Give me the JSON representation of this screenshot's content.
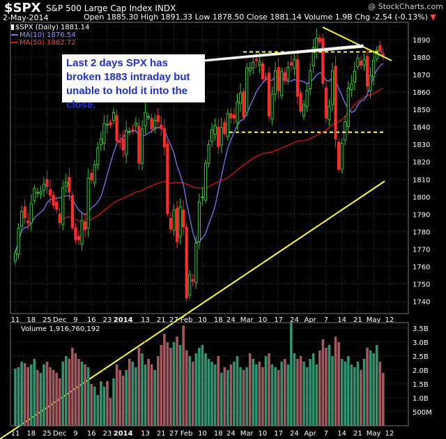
{
  "header": {
    "symbol": "$SPX",
    "name": "S&P 500 Large Cap Index",
    "exchange": "INDX",
    "date": "2-May-2014",
    "open_label": "Open",
    "open": "1885.30",
    "high_label": "High",
    "high": "1891.33",
    "low_label": "Low",
    "low": "1878.50",
    "close_label": "Close",
    "close": "1881.14",
    "volume_label": "Volume",
    "volume": "1.9B",
    "chg_label": "Chg",
    "chg": "-2.54 (-0.13%)",
    "chg_arrow": "▼",
    "watermark": "@ StockCharts.com"
  },
  "legend": {
    "price": "$SPX (Daily) 1881.14",
    "ma10": "MA(10) 1876.54",
    "ma50": "MA(50) 1862.72",
    "volume": "Volume 1,916,760,192"
  },
  "annotation": {
    "text": "Last 2 days SPX has broken 1883 intraday but unable to hold it into the close."
  },
  "colors": {
    "up": "#33cc33",
    "down": "#ff2b2b",
    "ma10": "#7777ff",
    "ma50": "#dd1111",
    "trend": "#ffff33",
    "grid": "#3a3a3a",
    "vol_up": "#2f9470",
    "vol_down": "#a05a60"
  },
  "chart_data": [
    {
      "type": "candlestick",
      "title": "$SPX (Daily) 1881.14",
      "ylim": [
        1733,
        1900
      ],
      "grid": true,
      "y_ticks": [
        1740,
        1750,
        1760,
        1770,
        1780,
        1790,
        1800,
        1810,
        1820,
        1830,
        1840,
        1850,
        1860,
        1870,
        1880,
        1890
      ],
      "x_tick_labels": [
        "11",
        "18",
        "25",
        "Dec",
        "9",
        "16",
        "23",
        "2014",
        "13",
        "21",
        "27",
        "Feb",
        "10",
        "18",
        "24",
        "Mar",
        "10",
        "17",
        "24",
        "Apr",
        "7",
        "14",
        "21",
        "May",
        "12"
      ],
      "x_tick_bar_index": [
        0,
        5,
        10,
        14,
        19,
        24,
        29,
        34,
        41,
        46,
        50,
        54,
        59,
        64,
        68,
        73,
        78,
        83,
        88,
        93,
        98,
        103,
        108,
        113,
        118
      ],
      "series_close": [
        1767.69,
        1782.0,
        1791.53,
        1787.87,
        1785.03,
        1795.85,
        1804.76,
        1802.48,
        1802.75,
        1807.23,
        1805.81,
        1800.9,
        1795.15,
        1792.81,
        1785.03,
        1805.09,
        1808.37,
        1802.62,
        1782.22,
        1775.5,
        1775.32,
        1786.54,
        1781.0,
        1810.65,
        1809.6,
        1818.32,
        1827.99,
        1833.32,
        1842.02,
        1841.4,
        1841.07,
        1848.36,
        1831.98,
        1831.37,
        1826.77,
        1837.88,
        1837.49,
        1838.13,
        1842.37,
        1819.2,
        1838.88,
        1848.38,
        1845.89,
        1838.7,
        1843.8,
        1843.08,
        1839.0,
        1828.46,
        1790.29,
        1781.56,
        1792.5,
        1774.2,
        1794.19,
        1782.59,
        1741.89,
        1755.2,
        1751.64,
        1773.43,
        1797.02,
        1799.84,
        1819.26,
        1829.83,
        1838.63,
        1840.76,
        1828.75,
        1839.78,
        1836.25,
        1847.61,
        1845.12,
        1845.16,
        1854.29,
        1859.45,
        1845.73,
        1873.91,
        1873.81,
        1877.03,
        1878.04,
        1877.17,
        1867.63,
        1868.2,
        1846.34,
        1858.83,
        1872.25,
        1860.77,
        1872.01,
        1866.52,
        1874.19,
        1875.39,
        1878.61,
        1857.62,
        1849.04,
        1852.56,
        1860.9,
        1872.34,
        1885.52,
        1890.9,
        1888.77,
        1865.09,
        1845.04,
        1851.96,
        1872.18,
        1833.08,
        1815.69,
        1830.61,
        1842.98,
        1862.31,
        1864.85,
        1871.89,
        1879.55,
        1875.39,
        1878.61,
        1863.4,
        1869.43,
        1878.33,
        1883.95,
        1883.68,
        1881.14
      ],
      "annotation_levels": [
        1883,
        1837
      ],
      "series": [
        {
          "name": "MA(10)",
          "last": 1876.54
        },
        {
          "name": "MA(50)",
          "last": 1862.72
        }
      ]
    },
    {
      "type": "bar",
      "title": "Volume 1,916,760,192",
      "ylim": [
        0,
        3.7
      ],
      "y_unit": "B",
      "y_ticks": [
        0.5,
        1.0,
        1.5,
        2.0,
        2.5,
        3.0,
        3.5
      ],
      "y_tick_labels": [
        "500M",
        "1.0B",
        "1.5B",
        "2.0B",
        "2.5B",
        "3.0B",
        "3.5B"
      ],
      "values": [
        2.05,
        2.1,
        2.3,
        2.25,
        2.1,
        2.2,
        2.4,
        2.0,
        1.9,
        2.2,
        2.3,
        2.1,
        2.0,
        1.9,
        1.7,
        2.3,
        2.5,
        2.4,
        2.8,
        2.6,
        2.4,
        2.3,
        2.2,
        2.1,
        1.5,
        1.4,
        1.1,
        1.6,
        1.4,
        1.6,
        1.0,
        1.7,
        2.2,
        2.0,
        1.8,
        2.0,
        2.4,
        2.3,
        2.1,
        2.8,
        2.6,
        2.2,
        2.4,
        2.2,
        2.0,
        2.5,
        2.9,
        3.3,
        3.0,
        2.8,
        3.0,
        3.2,
        2.9,
        3.6,
        2.7,
        2.5,
        2.3,
        2.6,
        2.8,
        2.9,
        2.6,
        2.4,
        2.3,
        2.2,
        2.5,
        1.9,
        2.1,
        2.0,
        2.2,
        2.3,
        2.5,
        2.1,
        2.0,
        2.1,
        2.6,
        2.4,
        2.2,
        2.3,
        2.1,
        2.5,
        2.6,
        2.2,
        2.1,
        2.0,
        2.3,
        2.4,
        2.2,
        3.8,
        2.6,
        2.4,
        2.5,
        2.3,
        2.1,
        2.4,
        2.6,
        2.2,
        2.7,
        3.1,
        2.8,
        2.9,
        2.5,
        3.2,
        3.0,
        2.4,
        2.3,
        2.5,
        2.2,
        2.1,
        2.3,
        2.0,
        2.4,
        2.8,
        2.7,
        2.6,
        2.9,
        2.3,
        1.9
      ],
      "x_tick_labels": [
        "11",
        "18",
        "25",
        "Dec",
        "9",
        "16",
        "23",
        "2014",
        "13",
        "21",
        "27",
        "Feb",
        "10",
        "18",
        "24",
        "Mar",
        "10",
        "17",
        "24",
        "Apr",
        "7",
        "14",
        "21",
        "May",
        "12"
      ],
      "x_tick_bar_index": [
        0,
        5,
        10,
        14,
        19,
        24,
        29,
        34,
        41,
        46,
        50,
        54,
        59,
        64,
        68,
        73,
        78,
        83,
        88,
        93,
        98,
        103,
        108,
        113,
        118
      ]
    }
  ]
}
